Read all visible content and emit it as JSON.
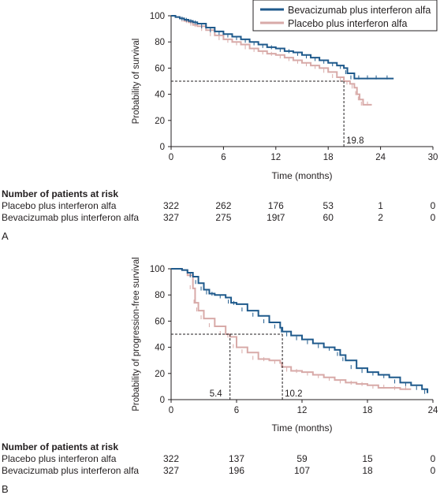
{
  "colors": {
    "bevacizumab": "#1f5a8c",
    "placebo": "#d8aaa8",
    "text": "#231f20"
  },
  "chart_data": [
    {
      "panel": "A",
      "type": "line",
      "xlabel": "Time (months)",
      "ylabel": "Probability of survival",
      "xlim": [
        0,
        30
      ],
      "ylim": [
        0,
        100
      ],
      "xticks": [
        0,
        6,
        12,
        18,
        24,
        30
      ],
      "yticks": [
        0,
        20,
        40,
        60,
        80,
        100
      ],
      "legend_position": "top-right",
      "series": [
        {
          "name": "Bevacizumab plus interferon alfa",
          "color_key": "bevacizumab",
          "x": [
            0,
            0.5,
            1,
            1.5,
            2,
            2.5,
            3,
            4,
            5,
            6,
            7,
            8,
            9,
            10,
            11,
            12,
            13,
            14,
            15,
            16,
            17,
            18,
            19,
            19.8,
            20.2,
            21,
            22,
            23,
            24,
            25.5
          ],
          "y": [
            100,
            99,
            98,
            97,
            96,
            95,
            94,
            91,
            88,
            86,
            84,
            82,
            80,
            78,
            76,
            75,
            73,
            72,
            70,
            68,
            66,
            64,
            62,
            60,
            56,
            52,
            52,
            52,
            52,
            52
          ]
        },
        {
          "name": "Placebo plus interferon alfa",
          "color_key": "placebo",
          "x": [
            0,
            0.5,
            1,
            1.5,
            2,
            2.5,
            3,
            4,
            5,
            6,
            7,
            8,
            9,
            10,
            11,
            12,
            13,
            14,
            15,
            16,
            17,
            18,
            19,
            19.8,
            20.5,
            21,
            21.3,
            21.6,
            22,
            23
          ],
          "y": [
            100,
            99,
            98,
            96,
            95,
            93,
            92,
            89,
            85,
            82,
            80,
            78,
            75,
            73,
            71,
            70,
            68,
            66,
            64,
            62,
            60,
            57,
            53,
            50,
            48,
            45,
            40,
            36,
            32,
            32
          ]
        }
      ],
      "reference": {
        "y": 50,
        "x": 19.8,
        "label": "19.8"
      },
      "risk_table": {
        "title": "Number of patients at risk",
        "times": [
          0,
          6,
          12,
          18,
          24,
          30
        ],
        "rows": [
          {
            "label": "Placebo plus interferon alfa",
            "values": [
              "322",
              "262",
              "176",
              "53",
              "1",
              "0"
            ]
          },
          {
            "label": "Bevacizumab plus interferon alfa",
            "values": [
              "327",
              "275",
              "19t7",
              "60",
              "2",
              "0"
            ]
          }
        ]
      }
    },
    {
      "panel": "B",
      "type": "line",
      "xlabel": "Time (months)",
      "ylabel": "Probability of progression-free survival",
      "xlim": [
        0,
        24
      ],
      "ylim": [
        0,
        100
      ],
      "xticks": [
        0,
        6,
        12,
        18,
        24
      ],
      "yticks": [
        0,
        20,
        40,
        60,
        80,
        100
      ],
      "series": [
        {
          "name": "Bevacizumab plus interferon alfa",
          "color_key": "bevacizumab",
          "x": [
            0,
            1,
            1.5,
            2,
            2.5,
            3,
            3.5,
            4,
            5,
            5.5,
            6,
            7,
            8,
            9,
            10,
            10.2,
            11,
            12,
            13,
            14,
            15,
            15.5,
            16,
            17,
            18,
            19,
            20,
            21,
            22,
            23,
            23.5
          ],
          "y": [
            100,
            99,
            97,
            94,
            89,
            84,
            81,
            80,
            78,
            74,
            73,
            68,
            64,
            59,
            55,
            52,
            49,
            46,
            43,
            40,
            38,
            34,
            30,
            24,
            21,
            19,
            17,
            13,
            11,
            8,
            5
          ]
        },
        {
          "name": "Placebo plus interferon alfa",
          "color_key": "placebo",
          "x": [
            0,
            1,
            1.5,
            2,
            2.2,
            2.5,
            3,
            4,
            5,
            5.4,
            6,
            7,
            8,
            9,
            10,
            10.2,
            11,
            12,
            13,
            14,
            15,
            16,
            17,
            18,
            19,
            20,
            21,
            22
          ],
          "y": [
            100,
            99,
            95,
            85,
            74,
            68,
            62,
            56,
            50,
            48,
            40,
            36,
            31,
            30,
            28,
            25,
            22,
            21,
            19,
            17,
            15,
            13,
            12,
            11,
            9,
            9,
            8,
            8
          ]
        }
      ],
      "reference": {
        "y": 50,
        "x_values": [
          5.4,
          10.2
        ],
        "labels": [
          "5.4",
          "10.2"
        ]
      },
      "risk_table": {
        "title": "Number of patients at risk",
        "times": [
          0,
          6,
          12,
          18,
          24
        ],
        "rows": [
          {
            "label": "Placebo plus interferon alfa",
            "values": [
              "322",
              "137",
              "59",
              "15",
              "0"
            ]
          },
          {
            "label": "Bevacizumab plus interferon alfa",
            "values": [
              "327",
              "196",
              "107",
              "18",
              "0"
            ]
          }
        ]
      }
    }
  ]
}
